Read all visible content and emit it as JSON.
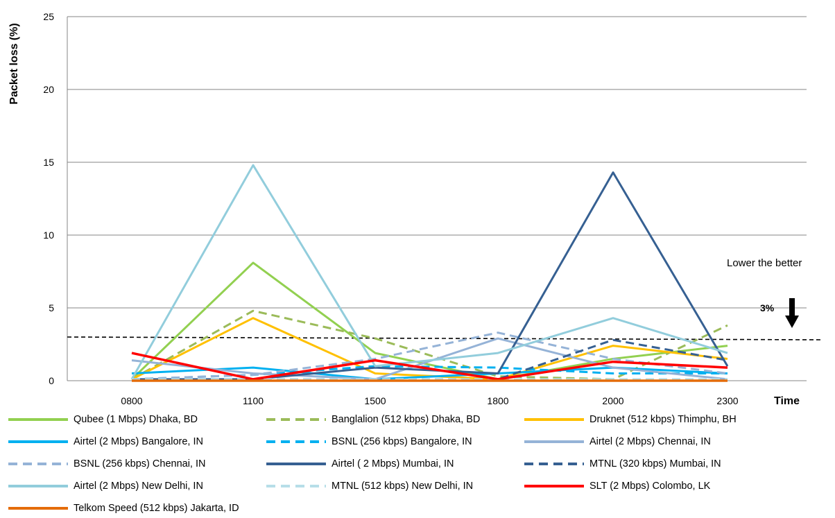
{
  "chart_data": {
    "type": "line",
    "title": "",
    "xlabel": "Time",
    "ylabel": "Packet loss (%)",
    "categories": [
      "0800",
      "1100",
      "1500",
      "1800",
      "2000",
      "2300"
    ],
    "ylim": [
      0,
      25
    ],
    "yticks": [
      0,
      5,
      10,
      15,
      20,
      25
    ],
    "grid": "horizontal",
    "legend_position": "bottom",
    "threshold": {
      "value": 3,
      "label": "3%"
    },
    "annotation": "Lower the better",
    "series": [
      {
        "name": "Qubee (1 Mbps) Dhaka, BD",
        "color": "#92d050",
        "dash": "solid",
        "values": [
          0.1,
          8.1,
          1.9,
          0.1,
          1.5,
          2.4
        ]
      },
      {
        "name": "Banglalion (512 kbps) Dhaka, BD",
        "color": "#9bbb59",
        "dash": "dashed",
        "values": [
          0.1,
          4.8,
          2.9,
          0.3,
          0.1,
          3.8
        ]
      },
      {
        "name": "Druknet (512 kbps) Thimphu, BH",
        "color": "#ffc000",
        "dash": "solid",
        "values": [
          0.1,
          4.3,
          0.5,
          0.1,
          2.4,
          1.5
        ]
      },
      {
        "name": "Airtel (2 Mbps) Bangalore, IN",
        "color": "#00b0f0",
        "dash": "solid",
        "values": [
          0.5,
          0.9,
          0.1,
          0.5,
          0.9,
          0.5
        ]
      },
      {
        "name": "BSNL (256 kbps) Bangalore, IN",
        "color": "#00b0f0",
        "dash": "dashed",
        "values": [
          0.1,
          0.4,
          1.0,
          0.9,
          0.5,
          0.5
        ]
      },
      {
        "name": "Airtel (2 Mbps) Chennai, IN",
        "color": "#95b3d7",
        "dash": "solid",
        "values": [
          1.4,
          0.5,
          0.1,
          2.9,
          0.9,
          0.1
        ]
      },
      {
        "name": "BSNL (256 kbps) Chennai, IN",
        "color": "#95b3d7",
        "dash": "dashed",
        "values": [
          0.1,
          0.4,
          1.5,
          3.3,
          1.5,
          0.5
        ]
      },
      {
        "name": "Airtel ( 2 Mbps) Mumbai, IN",
        "color": "#366092",
        "dash": "solid",
        "values": [
          0.1,
          0.1,
          0.9,
          0.5,
          14.3,
          1.0
        ]
      },
      {
        "name": "MTNL (320 kbps) Mumbai, IN",
        "color": "#366092",
        "dash": "dashed",
        "values": [
          0.1,
          0.1,
          0.1,
          0.1,
          2.8,
          1.4
        ]
      },
      {
        "name": "Airtel (2 Mbps) New Delhi, IN",
        "color": "#92cddc",
        "dash": "solid",
        "values": [
          0.1,
          14.8,
          1.0,
          1.9,
          4.3,
          1.9
        ]
      },
      {
        "name": "MTNL (512 kbps) New Delhi, IN",
        "color": "#b7dee8",
        "dash": "dashed",
        "values": [
          0.1,
          0.1,
          0.1,
          0.1,
          0.1,
          0.1
        ]
      },
      {
        "name": "SLT (2 Mbps) Colombo, LK",
        "color": "#ff0000",
        "dash": "solid",
        "values": [
          1.9,
          0.1,
          1.4,
          0.1,
          1.3,
          0.9
        ]
      },
      {
        "name": "Telkom Speed (512 kbps) Jakarta, ID",
        "color": "#e46c0a",
        "dash": "solid",
        "values": [
          0.0,
          0.0,
          0.0,
          0.0,
          0.0,
          0.0
        ]
      }
    ]
  }
}
